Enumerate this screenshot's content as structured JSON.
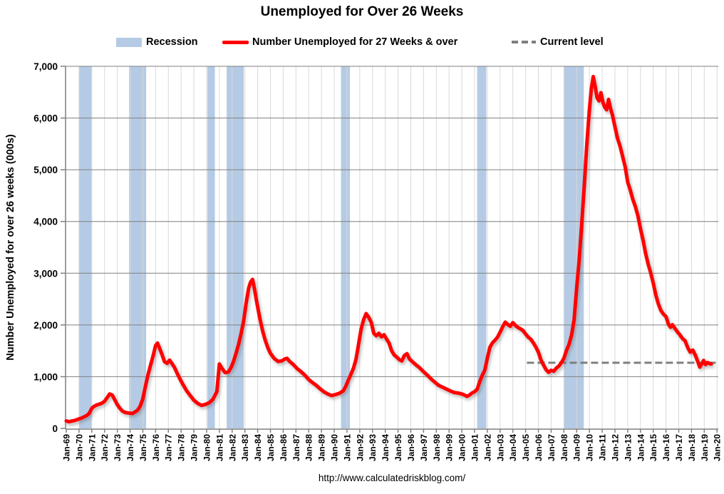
{
  "header": {
    "title": "Unemployed for Over 26 Weeks"
  },
  "legend": {
    "items": [
      {
        "label": "Recession",
        "swatch": "recession-box"
      },
      {
        "label": "Number Unemployed for 27 Weeks & over",
        "swatch": "red-line"
      },
      {
        "label": "Current level",
        "swatch": "gray-dashes"
      }
    ]
  },
  "footer": {
    "url": "http://www.calculatedriskblog.com/"
  },
  "colors": {
    "line_red": "#FF0000",
    "recession_band": "#B5CBE5",
    "grid_horizontal": "#7F7F7F",
    "grid_vertical": "#D9D9D9",
    "axis": "#7F7F7F",
    "dashed_gray": "#7F7F7F",
    "text": "#000000",
    "background": "#FFFFFF"
  },
  "chart_data": {
    "type": "line",
    "title": "Unemployed for Over 26 Weeks",
    "xlabel": "",
    "ylabel": "Number Unemployed for over 26 weeks (000s)",
    "ylim": [
      0,
      7000
    ],
    "ytick_step": 1000,
    "ytick_labels": [
      "0",
      "1,000",
      "2,000",
      "3,000",
      "4,000",
      "5,000",
      "6,000",
      "7,000"
    ],
    "xlim": [
      1969,
      2020.1
    ],
    "xtick_labels": [
      "Jan-69",
      "Jan-70",
      "Jan-71",
      "Jan-72",
      "Jan-73",
      "Jan-74",
      "Jan-75",
      "Jan-76",
      "Jan-77",
      "Jan-78",
      "Jan-79",
      "Jan-80",
      "Jan-81",
      "Jan-82",
      "Jan-83",
      "Jan-84",
      "Jan-85",
      "Jan-86",
      "Jan-87",
      "Jan-88",
      "Jan-89",
      "Jan-90",
      "Jan-91",
      "Jan-92",
      "Jan-93",
      "Jan-94",
      "Jan-95",
      "Jan-96",
      "Jan-97",
      "Jan-98",
      "Jan-99",
      "Jan-00",
      "Jan-01",
      "Jan-02",
      "Jan-03",
      "Jan-04",
      "Jan-05",
      "Jan-06",
      "Jan-07",
      "Jan-08",
      "Jan-09",
      "Jan-10",
      "Jan-11",
      "Jan-12",
      "Jan-13",
      "Jan-14",
      "Jan-15",
      "Jan-16",
      "Jan-17",
      "Jan-18",
      "Jan-19",
      "Jan-20"
    ],
    "grid": "horizontal-dark-vertical-light",
    "legend_position": "top",
    "recession_bands": [
      [
        1970.0,
        1971.0
      ],
      [
        1973.92,
        1975.26
      ],
      [
        1980.06,
        1980.65
      ],
      [
        1981.57,
        1982.91
      ],
      [
        1990.53,
        1991.23
      ],
      [
        2001.2,
        2001.92
      ],
      [
        2008.0,
        2009.56
      ]
    ],
    "series": [
      {
        "name": "Number Unemployed for 27 Weeks & over",
        "type": "line",
        "color": "#FF0000",
        "points": [
          [
            1969.0,
            145
          ],
          [
            1969.2,
            130
          ],
          [
            1969.4,
            140
          ],
          [
            1969.6,
            150
          ],
          [
            1969.8,
            165
          ],
          [
            1970.0,
            185
          ],
          [
            1970.2,
            200
          ],
          [
            1970.4,
            225
          ],
          [
            1970.6,
            250
          ],
          [
            1970.8,
            290
          ],
          [
            1971.0,
            390
          ],
          [
            1971.2,
            430
          ],
          [
            1971.4,
            455
          ],
          [
            1971.6,
            470
          ],
          [
            1971.8,
            490
          ],
          [
            1972.0,
            525
          ],
          [
            1972.2,
            595
          ],
          [
            1972.4,
            665
          ],
          [
            1972.6,
            645
          ],
          [
            1972.8,
            555
          ],
          [
            1973.0,
            460
          ],
          [
            1973.2,
            390
          ],
          [
            1973.4,
            335
          ],
          [
            1973.6,
            310
          ],
          [
            1973.8,
            300
          ],
          [
            1974.0,
            295
          ],
          [
            1974.2,
            290
          ],
          [
            1974.4,
            320
          ],
          [
            1974.6,
            355
          ],
          [
            1974.8,
            435
          ],
          [
            1975.0,
            570
          ],
          [
            1975.2,
            810
          ],
          [
            1975.4,
            1030
          ],
          [
            1975.6,
            1220
          ],
          [
            1975.8,
            1400
          ],
          [
            1976.0,
            1600
          ],
          [
            1976.15,
            1650
          ],
          [
            1976.3,
            1560
          ],
          [
            1976.5,
            1430
          ],
          [
            1976.7,
            1290
          ],
          [
            1976.9,
            1260
          ],
          [
            1977.1,
            1320
          ],
          [
            1977.3,
            1250
          ],
          [
            1977.5,
            1170
          ],
          [
            1977.7,
            1060
          ],
          [
            1977.9,
            960
          ],
          [
            1978.1,
            870
          ],
          [
            1978.4,
            740
          ],
          [
            1978.7,
            640
          ],
          [
            1979.0,
            545
          ],
          [
            1979.3,
            485
          ],
          [
            1979.6,
            445
          ],
          [
            1979.9,
            465
          ],
          [
            1980.2,
            495
          ],
          [
            1980.5,
            565
          ],
          [
            1980.8,
            710
          ],
          [
            1981.0,
            1245
          ],
          [
            1981.2,
            1160
          ],
          [
            1981.45,
            1080
          ],
          [
            1981.7,
            1090
          ],
          [
            1981.9,
            1170
          ],
          [
            1982.1,
            1290
          ],
          [
            1982.3,
            1450
          ],
          [
            1982.5,
            1620
          ],
          [
            1982.7,
            1830
          ],
          [
            1982.9,
            2080
          ],
          [
            1983.1,
            2430
          ],
          [
            1983.3,
            2720
          ],
          [
            1983.45,
            2830
          ],
          [
            1983.6,
            2880
          ],
          [
            1983.75,
            2700
          ],
          [
            1983.9,
            2480
          ],
          [
            1984.05,
            2280
          ],
          [
            1984.2,
            2090
          ],
          [
            1984.4,
            1870
          ],
          [
            1984.6,
            1700
          ],
          [
            1984.8,
            1560
          ],
          [
            1985.0,
            1450
          ],
          [
            1985.3,
            1350
          ],
          [
            1985.6,
            1295
          ],
          [
            1985.9,
            1305
          ],
          [
            1986.1,
            1340
          ],
          [
            1986.3,
            1355
          ],
          [
            1986.5,
            1295
          ],
          [
            1986.8,
            1235
          ],
          [
            1987.1,
            1155
          ],
          [
            1987.4,
            1095
          ],
          [
            1987.7,
            1030
          ],
          [
            1988.0,
            945
          ],
          [
            1988.3,
            885
          ],
          [
            1988.6,
            830
          ],
          [
            1988.9,
            765
          ],
          [
            1989.2,
            705
          ],
          [
            1989.5,
            665
          ],
          [
            1989.8,
            635
          ],
          [
            1990.1,
            655
          ],
          [
            1990.4,
            680
          ],
          [
            1990.7,
            725
          ],
          [
            1990.9,
            810
          ],
          [
            1991.1,
            930
          ],
          [
            1991.3,
            1040
          ],
          [
            1991.5,
            1160
          ],
          [
            1991.7,
            1330
          ],
          [
            1991.9,
            1610
          ],
          [
            1992.1,
            1910
          ],
          [
            1992.3,
            2100
          ],
          [
            1992.5,
            2220
          ],
          [
            1992.7,
            2150
          ],
          [
            1992.9,
            2050
          ],
          [
            1993.1,
            1840
          ],
          [
            1993.3,
            1790
          ],
          [
            1993.5,
            1840
          ],
          [
            1993.7,
            1770
          ],
          [
            1993.9,
            1810
          ],
          [
            1994.1,
            1730
          ],
          [
            1994.3,
            1650
          ],
          [
            1994.5,
            1500
          ],
          [
            1994.7,
            1420
          ],
          [
            1994.9,
            1380
          ],
          [
            1995.1,
            1330
          ],
          [
            1995.3,
            1305
          ],
          [
            1995.5,
            1410
          ],
          [
            1995.7,
            1445
          ],
          [
            1995.9,
            1340
          ],
          [
            1996.1,
            1295
          ],
          [
            1996.4,
            1230
          ],
          [
            1996.7,
            1170
          ],
          [
            1997.0,
            1095
          ],
          [
            1997.3,
            1030
          ],
          [
            1997.6,
            955
          ],
          [
            1997.9,
            890
          ],
          [
            1998.2,
            830
          ],
          [
            1998.5,
            795
          ],
          [
            1998.8,
            760
          ],
          [
            1999.1,
            725
          ],
          [
            1999.4,
            695
          ],
          [
            1999.7,
            685
          ],
          [
            2000.0,
            665
          ],
          [
            2000.2,
            645
          ],
          [
            2000.4,
            620
          ],
          [
            2000.6,
            645
          ],
          [
            2000.8,
            685
          ],
          [
            2001.0,
            710
          ],
          [
            2001.2,
            755
          ],
          [
            2001.4,
            905
          ],
          [
            2001.6,
            1025
          ],
          [
            2001.8,
            1125
          ],
          [
            2002.0,
            1360
          ],
          [
            2002.2,
            1570
          ],
          [
            2002.4,
            1655
          ],
          [
            2002.6,
            1705
          ],
          [
            2002.8,
            1765
          ],
          [
            2003.0,
            1860
          ],
          [
            2003.2,
            1965
          ],
          [
            2003.4,
            2055
          ],
          [
            2003.6,
            2010
          ],
          [
            2003.8,
            1975
          ],
          [
            2004.0,
            2045
          ],
          [
            2004.2,
            1990
          ],
          [
            2004.4,
            1950
          ],
          [
            2004.6,
            1925
          ],
          [
            2004.8,
            1890
          ],
          [
            2005.0,
            1825
          ],
          [
            2005.2,
            1765
          ],
          [
            2005.4,
            1725
          ],
          [
            2005.6,
            1655
          ],
          [
            2005.8,
            1575
          ],
          [
            2006.0,
            1475
          ],
          [
            2006.2,
            1325
          ],
          [
            2006.4,
            1225
          ],
          [
            2006.6,
            1135
          ],
          [
            2006.8,
            1085
          ],
          [
            2007.0,
            1125
          ],
          [
            2007.2,
            1105
          ],
          [
            2007.4,
            1165
          ],
          [
            2007.6,
            1205
          ],
          [
            2007.8,
            1270
          ],
          [
            2008.0,
            1355
          ],
          [
            2008.2,
            1505
          ],
          [
            2008.4,
            1625
          ],
          [
            2008.6,
            1805
          ],
          [
            2008.8,
            2105
          ],
          [
            2009.0,
            2705
          ],
          [
            2009.2,
            3260
          ],
          [
            2009.4,
            3955
          ],
          [
            2009.6,
            4710
          ],
          [
            2009.8,
            5510
          ],
          [
            2010.0,
            6160
          ],
          [
            2010.15,
            6560
          ],
          [
            2010.3,
            6800
          ],
          [
            2010.45,
            6610
          ],
          [
            2010.6,
            6390
          ],
          [
            2010.75,
            6330
          ],
          [
            2010.9,
            6490
          ],
          [
            2011.05,
            6310
          ],
          [
            2011.2,
            6210
          ],
          [
            2011.35,
            6160
          ],
          [
            2011.5,
            6360
          ],
          [
            2011.65,
            6190
          ],
          [
            2011.8,
            6060
          ],
          [
            2012.0,
            5830
          ],
          [
            2012.2,
            5610
          ],
          [
            2012.4,
            5460
          ],
          [
            2012.6,
            5260
          ],
          [
            2012.8,
            5060
          ],
          [
            2013.0,
            4760
          ],
          [
            2013.2,
            4610
          ],
          [
            2013.4,
            4430
          ],
          [
            2013.6,
            4290
          ],
          [
            2013.8,
            4110
          ],
          [
            2014.0,
            3860
          ],
          [
            2014.2,
            3640
          ],
          [
            2014.4,
            3390
          ],
          [
            2014.6,
            3180
          ],
          [
            2014.8,
            3010
          ],
          [
            2015.0,
            2810
          ],
          [
            2015.2,
            2580
          ],
          [
            2015.4,
            2410
          ],
          [
            2015.6,
            2280
          ],
          [
            2015.8,
            2210
          ],
          [
            2016.0,
            2160
          ],
          [
            2016.2,
            2010
          ],
          [
            2016.35,
            1955
          ],
          [
            2016.5,
            2005
          ],
          [
            2016.7,
            1935
          ],
          [
            2016.9,
            1865
          ],
          [
            2017.1,
            1805
          ],
          [
            2017.3,
            1735
          ],
          [
            2017.5,
            1695
          ],
          [
            2017.7,
            1565
          ],
          [
            2017.9,
            1475
          ],
          [
            2018.1,
            1515
          ],
          [
            2018.3,
            1415
          ],
          [
            2018.5,
            1285
          ],
          [
            2018.65,
            1185
          ],
          [
            2018.8,
            1245
          ],
          [
            2018.95,
            1315
          ],
          [
            2019.1,
            1235
          ],
          [
            2019.25,
            1275
          ],
          [
            2019.4,
            1255
          ],
          [
            2019.55,
            1245
          ]
        ]
      },
      {
        "name": "Current level",
        "type": "dashed-line",
        "color": "#7F7F7F",
        "value": 1270,
        "x_start": 2005.1,
        "x_end": 2020.1
      }
    ]
  }
}
